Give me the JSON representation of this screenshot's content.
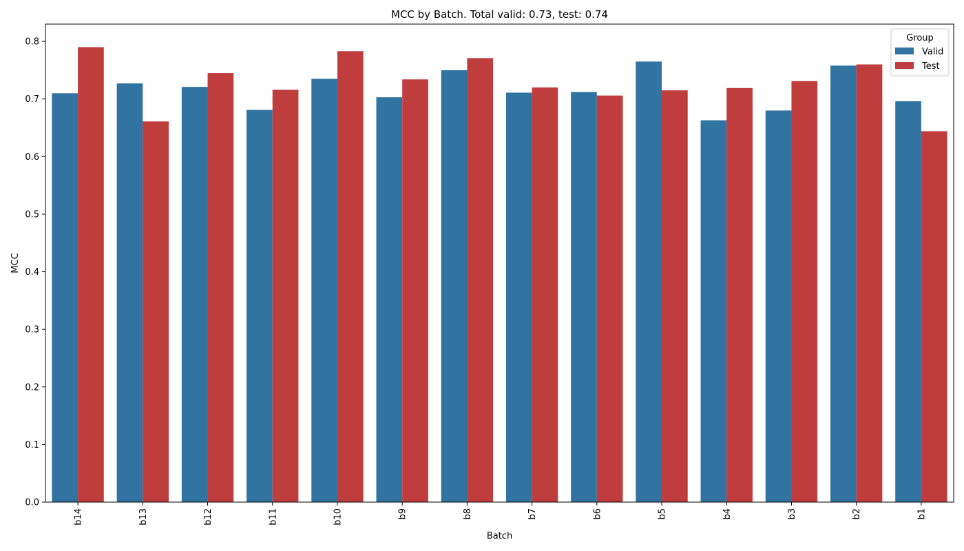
{
  "chart_data": {
    "type": "bar",
    "title": "MCC by Batch. Total valid: 0.73, test: 0.74",
    "xlabel": "Batch",
    "ylabel": "MCC",
    "ylim": [
      0,
      0.83
    ],
    "yticks": [
      "0.0",
      "0.1",
      "0.2",
      "0.3",
      "0.4",
      "0.5",
      "0.6",
      "0.7",
      "0.8"
    ],
    "categories": [
      "b14",
      "b13",
      "b12",
      "b11",
      "b10",
      "b9",
      "b8",
      "b7",
      "b6",
      "b5",
      "b4",
      "b3",
      "b2",
      "b1"
    ],
    "series": [
      {
        "name": "Valid",
        "color": "#3274a1",
        "values": [
          0.71,
          0.727,
          0.721,
          0.681,
          0.735,
          0.703,
          0.75,
          0.711,
          0.712,
          0.765,
          0.663,
          0.68,
          0.758,
          0.696
        ]
      },
      {
        "name": "Test",
        "color": "#c03d3e",
        "values": [
          0.79,
          0.661,
          0.745,
          0.716,
          0.783,
          0.734,
          0.771,
          0.72,
          0.706,
          0.715,
          0.719,
          0.731,
          0.76,
          0.644
        ]
      }
    ],
    "legend": {
      "title": "Group",
      "position": "top-right"
    },
    "grid": false
  }
}
